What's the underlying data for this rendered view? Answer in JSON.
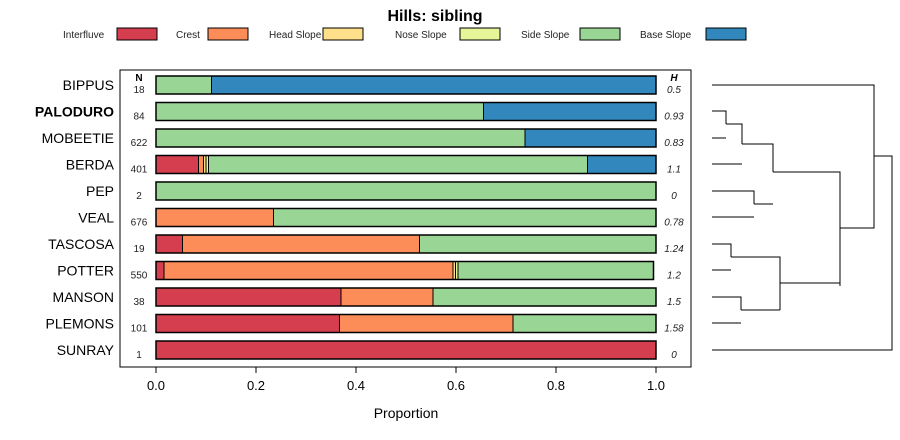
{
  "chart_data": {
    "type": "bar",
    "orientation": "horizontal",
    "stacked": true,
    "title": "Hills: sibling",
    "xlabel": "Proportion",
    "ylabel": "",
    "xlim": [
      0,
      1
    ],
    "xticks": [
      "0.0",
      "0.2",
      "0.4",
      "0.6",
      "0.8",
      "1.0"
    ],
    "n_header": "N",
    "h_header": "H",
    "legend_position": "top",
    "categories": [
      "BIPPUS",
      "PALODURO",
      "MOBEETIE",
      "BERDA",
      "PEP",
      "VEAL",
      "TASCOSA",
      "POTTER",
      "MANSON",
      "PLEMONS",
      "SUNRAY"
    ],
    "highlighted_category": "PALODURO",
    "n": [
      "18",
      "84",
      "622",
      "401",
      "2",
      "676",
      "19",
      "550",
      "38",
      "101",
      "1"
    ],
    "h": [
      "0.5",
      "0.93",
      "0.83",
      "1.1",
      "0",
      "0.78",
      "1.24",
      "1.2",
      "1.5",
      "1.58",
      "0"
    ],
    "series": [
      {
        "name": "Interfluve",
        "color": "#D53E4F",
        "values": [
          0,
          0,
          0,
          0.085,
          0,
          0,
          0.053,
          0.016,
          0.37,
          0.367,
          1.0
        ]
      },
      {
        "name": "Crest",
        "color": "#FC8D59",
        "values": [
          0,
          0,
          0,
          0.01,
          0,
          0.235,
          0.474,
          0.578,
          0.184,
          0.347,
          0
        ]
      },
      {
        "name": "Head Slope",
        "color": "#FEE08B",
        "values": [
          0,
          0,
          0,
          0.005,
          0,
          0,
          0,
          0.005,
          0,
          0,
          0
        ]
      },
      {
        "name": "Nose Slope",
        "color": "#E6F598",
        "values": [
          0,
          0,
          0,
          0.005,
          0,
          0,
          0,
          0.005,
          0,
          0,
          0
        ]
      },
      {
        "name": "Side Slope",
        "color": "#99D594",
        "values": [
          0.111,
          0.655,
          0.738,
          0.758,
          1.0,
          0.765,
          0.473,
          0.391,
          0.446,
          0.286,
          0
        ]
      },
      {
        "name": "Base Slope",
        "color": "#3288BD",
        "values": [
          0.889,
          0.345,
          0.262,
          0.137,
          0,
          0,
          0,
          0,
          0,
          0,
          0
        ]
      }
    ],
    "dendrogram": "hierarchical clustering of the eleven soil series (sibling tree)"
  }
}
